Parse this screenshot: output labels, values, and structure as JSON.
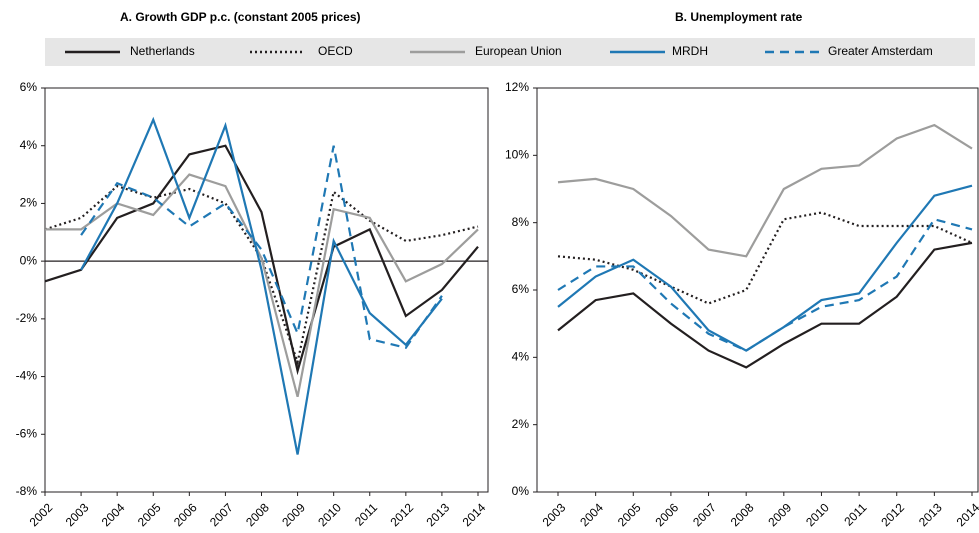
{
  "chart_data": [
    {
      "type": "line",
      "title": "A. Growth GDP p.c. (constant 2005 prices)",
      "categories": [
        "2002",
        "2003",
        "2004",
        "2005",
        "2006",
        "2007",
        "2008",
        "2009",
        "2010",
        "2011",
        "2012",
        "2013",
        "2014"
      ],
      "ylim": [
        -8,
        6
      ],
      "yticks": [
        {
          "value": -8,
          "label": "-8%"
        },
        {
          "value": -6,
          "label": "-6%"
        },
        {
          "value": -4,
          "label": "-4%"
        },
        {
          "value": -2,
          "label": "-2%"
        },
        {
          "value": 0,
          "label": "0%"
        },
        {
          "value": 2,
          "label": "2%"
        },
        {
          "value": 4,
          "label": "4%"
        },
        {
          "value": 6,
          "label": "6%"
        }
      ],
      "series": [
        {
          "name": "Netherlands",
          "color": "#231f20",
          "dash": "solid",
          "values": [
            -0.7,
            -0.3,
            1.5,
            2.0,
            3.7,
            4.0,
            1.7,
            -3.8,
            0.5,
            1.1,
            -1.9,
            -1.0,
            0.5
          ]
        },
        {
          "name": "OECD",
          "color": "#231f20",
          "dash": "dotted",
          "values": [
            1.1,
            1.5,
            2.6,
            2.2,
            2.5,
            2.0,
            0.1,
            -3.5,
            2.4,
            1.4,
            0.7,
            0.9,
            1.2
          ]
        },
        {
          "name": "European Union",
          "color": "#9d9d9c",
          "dash": "solid",
          "values": [
            1.1,
            1.1,
            2.0,
            1.6,
            3.0,
            2.6,
            0.1,
            -4.7,
            1.8,
            1.5,
            -0.7,
            -0.1,
            1.1
          ]
        },
        {
          "name": "MRDH",
          "color": "#1f78b4",
          "dash": "solid",
          "values": [
            null,
            -0.3,
            2.0,
            4.9,
            1.5,
            4.7,
            -0.3,
            -6.7,
            0.7,
            -1.8,
            -2.9,
            -1.3,
            null
          ]
        },
        {
          "name": "Greater Amsterdam",
          "color": "#1f78b4",
          "dash": "dashed",
          "values": [
            null,
            0.9,
            2.7,
            2.2,
            1.2,
            2.0,
            0.4,
            -2.5,
            4.0,
            -2.7,
            -3.0,
            -1.2,
            null
          ]
        }
      ]
    },
    {
      "type": "line",
      "title": "B. Unemployment rate",
      "categories": [
        "2003",
        "2004",
        "2005",
        "2006",
        "2007",
        "2008",
        "2009",
        "2010",
        "2011",
        "2012",
        "2013",
        "2014"
      ],
      "ylim": [
        0,
        12
      ],
      "yticks": [
        {
          "value": 0,
          "label": "0%"
        },
        {
          "value": 2,
          "label": "2%"
        },
        {
          "value": 4,
          "label": "4%"
        },
        {
          "value": 6,
          "label": "6%"
        },
        {
          "value": 8,
          "label": "8%"
        },
        {
          "value": 10,
          "label": "10%"
        },
        {
          "value": 12,
          "label": "12%"
        }
      ],
      "series": [
        {
          "color": "#231f20",
          "dash": "solid",
          "values": [
            4.8,
            5.7,
            5.9,
            5.0,
            4.2,
            3.7,
            4.4,
            5.0,
            5.0,
            5.8,
            7.2,
            7.4
          ]
        },
        {
          "color": "#231f20",
          "dash": "dotted",
          "values": [
            7.0,
            6.9,
            6.6,
            6.1,
            5.6,
            6.0,
            8.1,
            8.3,
            7.9,
            7.9,
            7.9,
            7.4
          ]
        },
        {
          "color": "#9d9d9c",
          "dash": "solid",
          "values": [
            9.2,
            9.3,
            9.0,
            8.2,
            7.2,
            7.0,
            9.0,
            9.6,
            9.7,
            10.5,
            10.9,
            10.2
          ]
        },
        {
          "color": "#1f78b4",
          "dash": "solid",
          "values": [
            5.5,
            6.4,
            6.9,
            6.1,
            4.8,
            4.2,
            4.9,
            5.7,
            5.9,
            7.4,
            8.8,
            9.1
          ]
        },
        {
          "color": "#1f78b4",
          "dash": "dashed",
          "values": [
            6.0,
            6.7,
            6.7,
            5.6,
            4.7,
            4.2,
            4.9,
            5.5,
            5.7,
            6.4,
            8.1,
            7.8
          ]
        }
      ]
    }
  ]
}
